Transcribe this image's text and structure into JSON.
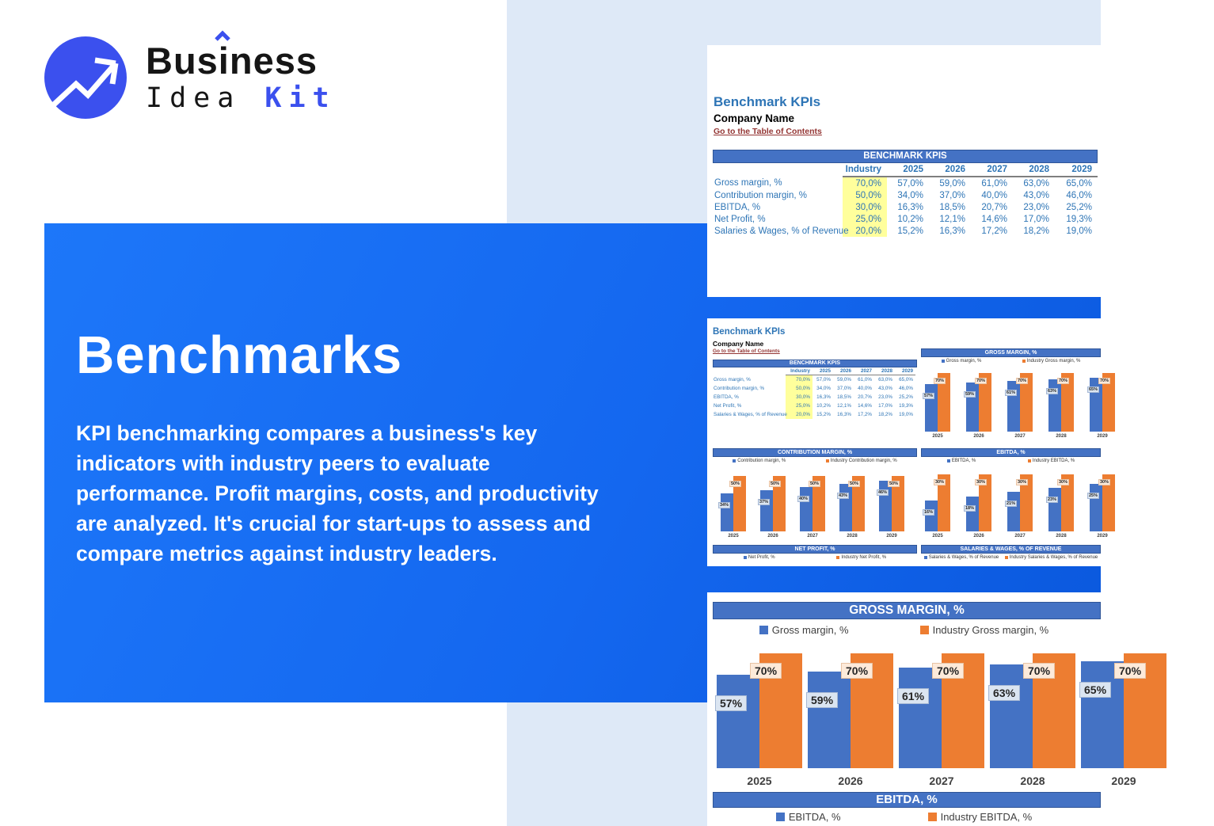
{
  "logo": {
    "line1": {
      "pre": "Bus",
      "i": "i",
      "post": "ness"
    },
    "line2": {
      "black": "Idea",
      "accent": "Kit"
    }
  },
  "hero": {
    "title": "Benchmarks",
    "body": "KPI benchmarking compares a business's key indicators with industry peers to evaluate performance. Profit margins, costs, and productivity are analyzed. It's crucial for start-ups to assess and compare metrics against industry leaders."
  },
  "sheet": {
    "title": "Benchmark KPIs",
    "company": "Company Name",
    "toc_link": "Go to the Table of Contents",
    "table": {
      "header_bar": "BENCHMARK KPIS",
      "columns": [
        "Industry",
        "2025",
        "2026",
        "2027",
        "2028",
        "2029"
      ],
      "rows": [
        {
          "label": "Gross margin, %",
          "industry": "70,0%",
          "values": [
            "57,0%",
            "59,0%",
            "61,0%",
            "63,0%",
            "65,0%"
          ]
        },
        {
          "label": "Contribution margin, %",
          "industry": "50,0%",
          "values": [
            "34,0%",
            "37,0%",
            "40,0%",
            "43,0%",
            "46,0%"
          ]
        },
        {
          "label": "EBITDA, %",
          "industry": "30,0%",
          "values": [
            "16,3%",
            "18,5%",
            "20,7%",
            "23,0%",
            "25,2%"
          ]
        },
        {
          "label": "Net Profit, %",
          "industry": "25,0%",
          "values": [
            "10,2%",
            "12,1%",
            "14,6%",
            "17,0%",
            "19,3%"
          ]
        },
        {
          "label": "Salaries & Wages, % of Revenue",
          "industry": "20,0%",
          "values": [
            "15,2%",
            "16,3%",
            "17,2%",
            "18,2%",
            "19,0%"
          ]
        }
      ]
    }
  },
  "chart_data": {
    "years": [
      "2025",
      "2026",
      "2027",
      "2028",
      "2029"
    ],
    "gross_margin": {
      "type": "bar",
      "title": "GROSS MARGIN, %",
      "legend": [
        "Gross margin, %",
        "Industry Gross margin, %"
      ],
      "series": [
        {
          "name": "Gross margin, %",
          "values": [
            57,
            59,
            61,
            63,
            65
          ]
        },
        {
          "name": "Industry Gross margin, %",
          "values": [
            70,
            70,
            70,
            70,
            70
          ]
        }
      ],
      "own_labels": [
        "57%",
        "59%",
        "61%",
        "63%",
        "65%"
      ],
      "ind_labels": [
        "70%",
        "70%",
        "70%",
        "70%",
        "70%"
      ],
      "axis_max": 80
    },
    "contribution_margin": {
      "type": "bar",
      "title": "CONTRIBUTION MARGIN, %",
      "legend": [
        "Contribution margin, %",
        "Industry Contribution margin, %"
      ],
      "series": [
        {
          "name": "Contribution margin, %",
          "values": [
            34,
            37,
            40,
            43,
            46
          ]
        },
        {
          "name": "Industry Contribution margin, %",
          "values": [
            50,
            50,
            50,
            50,
            50
          ]
        }
      ],
      "own_labels": [
        "34%",
        "37%",
        "40%",
        "43%",
        "46%"
      ],
      "ind_labels": [
        "50%",
        "50%",
        "50%",
        "50%",
        "50%"
      ],
      "axis_max": 60
    },
    "ebitda": {
      "type": "bar",
      "title": "EBITDA, %",
      "legend": [
        "EBITDA, %",
        "Industry EBITDA, %"
      ],
      "series": [
        {
          "name": "EBITDA, %",
          "values": [
            16.3,
            18.5,
            20.7,
            23,
            25.2
          ]
        },
        {
          "name": "Industry EBITDA, %",
          "values": [
            30,
            30,
            30,
            30,
            30
          ]
        }
      ],
      "own_labels": [
        "16%",
        "18%",
        "21%",
        "23%",
        "25%"
      ],
      "ind_labels": [
        "30%",
        "30%",
        "30%",
        "30%",
        "30%"
      ],
      "axis_max": 35
    },
    "net_profit": {
      "type": "bar",
      "title": "NET PROFIT, %",
      "legend": [
        "Net Profit, %",
        "Industry Net Profit, %"
      ]
    },
    "salaries": {
      "type": "bar",
      "title": "SALARIES & WAGES, % OF REVENUE",
      "legend": [
        "Salaries & Wages, % of Revenue",
        "Industry Salaries & Wages, % of Revenue"
      ]
    },
    "ebitda_footer": {
      "title": "EBITDA, %",
      "legend": [
        "EBITDA, %",
        "Industry EBITDA, %"
      ]
    }
  },
  "colors": {
    "hero_blue": "#1467ef",
    "light_blue_bg": "#dee9f7",
    "office_header_blue": "#4472c4",
    "bar_blue": "#4472c4",
    "bar_orange": "#ed7d31",
    "sheet_text_blue": "#2e75b6",
    "link_maroon": "#943634",
    "highlight_yellow": "#ffff9c",
    "logo_blue": "#3b50ee"
  }
}
